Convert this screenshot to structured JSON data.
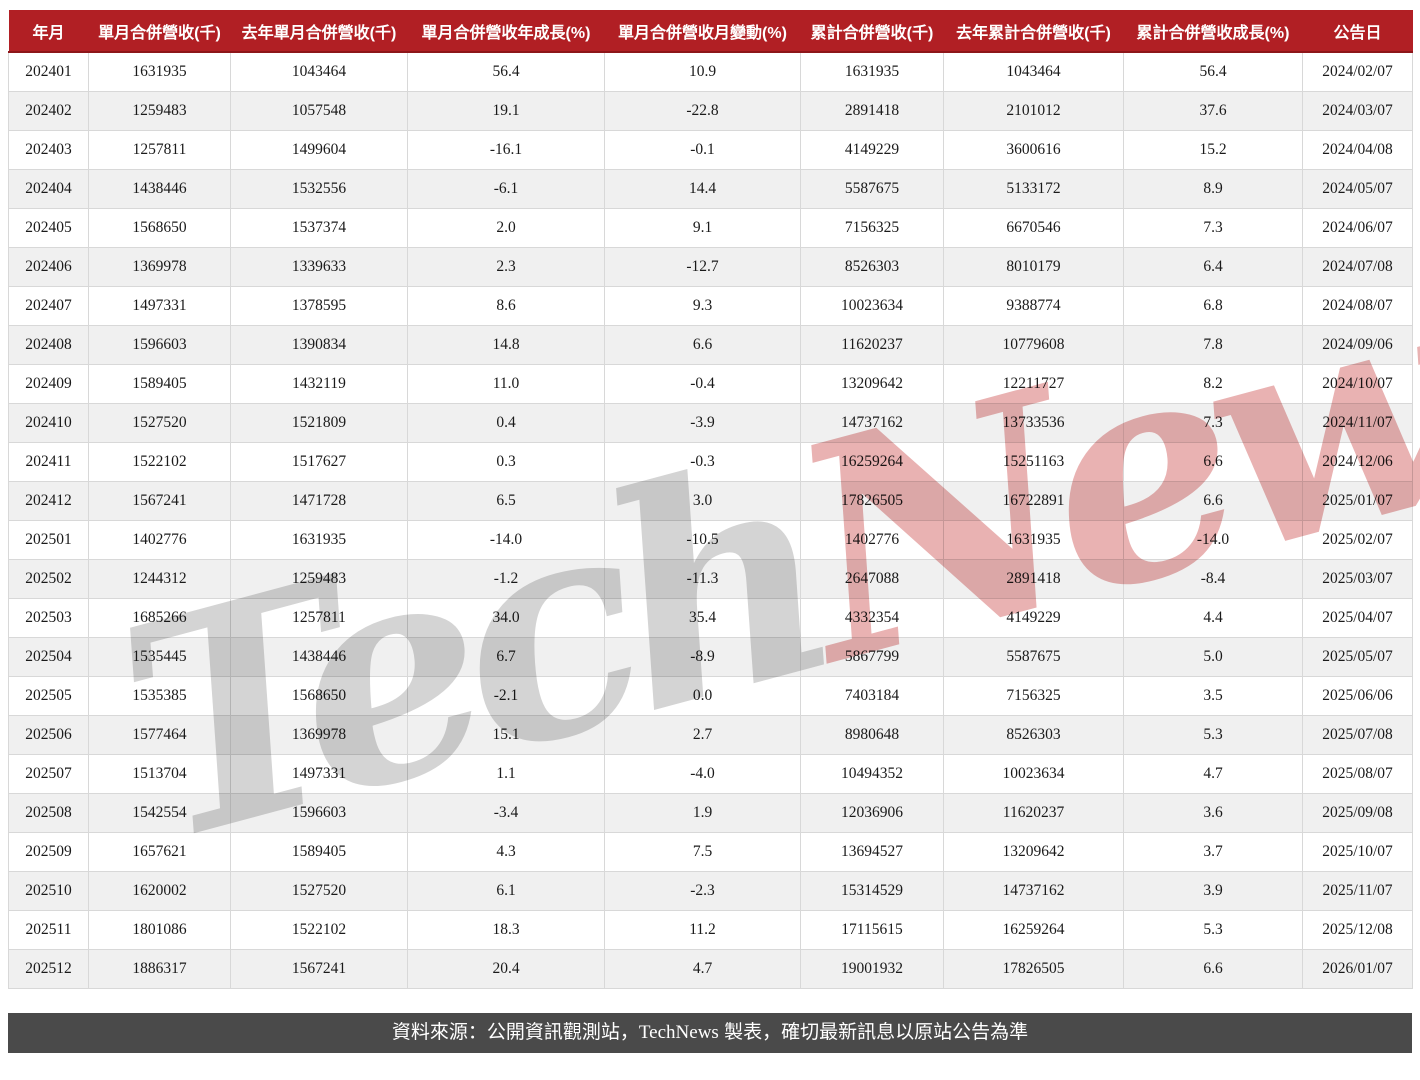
{
  "chart_data": {
    "type": "table",
    "columns": [
      "年月",
      "單月合併營收(千)",
      "去年單月合併營收(千)",
      "單月合併營收年成長(%)",
      "單月合併營收月變動(%)",
      "累計合併營收(千)",
      "去年累計合併營收(千)",
      "累計合併營收成長(%)",
      "公告日"
    ],
    "rows": [
      [
        "202401",
        "1631935",
        "1043464",
        "56.4",
        "10.9",
        "1631935",
        "1043464",
        "56.4",
        "2024/02/07"
      ],
      [
        "202402",
        "1259483",
        "1057548",
        "19.1",
        "-22.8",
        "2891418",
        "2101012",
        "37.6",
        "2024/03/07"
      ],
      [
        "202403",
        "1257811",
        "1499604",
        "-16.1",
        "-0.1",
        "4149229",
        "3600616",
        "15.2",
        "2024/04/08"
      ],
      [
        "202404",
        "1438446",
        "1532556",
        "-6.1",
        "14.4",
        "5587675",
        "5133172",
        "8.9",
        "2024/05/07"
      ],
      [
        "202405",
        "1568650",
        "1537374",
        "2.0",
        "9.1",
        "7156325",
        "6670546",
        "7.3",
        "2024/06/07"
      ],
      [
        "202406",
        "1369978",
        "1339633",
        "2.3",
        "-12.7",
        "8526303",
        "8010179",
        "6.4",
        "2024/07/08"
      ],
      [
        "202407",
        "1497331",
        "1378595",
        "8.6",
        "9.3",
        "10023634",
        "9388774",
        "6.8",
        "2024/08/07"
      ],
      [
        "202408",
        "1596603",
        "1390834",
        "14.8",
        "6.6",
        "11620237",
        "10779608",
        "7.8",
        "2024/09/06"
      ],
      [
        "202409",
        "1589405",
        "1432119",
        "11.0",
        "-0.4",
        "13209642",
        "12211727",
        "8.2",
        "2024/10/07"
      ],
      [
        "202410",
        "1527520",
        "1521809",
        "0.4",
        "-3.9",
        "14737162",
        "13733536",
        "7.3",
        "2024/11/07"
      ],
      [
        "202411",
        "1522102",
        "1517627",
        "0.3",
        "-0.3",
        "16259264",
        "15251163",
        "6.6",
        "2024/12/06"
      ],
      [
        "202412",
        "1567241",
        "1471728",
        "6.5",
        "3.0",
        "17826505",
        "16722891",
        "6.6",
        "2025/01/07"
      ],
      [
        "202501",
        "1402776",
        "1631935",
        "-14.0",
        "-10.5",
        "1402776",
        "1631935",
        "-14.0",
        "2025/02/07"
      ],
      [
        "202502",
        "1244312",
        "1259483",
        "-1.2",
        "-11.3",
        "2647088",
        "2891418",
        "-8.4",
        "2025/03/07"
      ],
      [
        "202503",
        "1685266",
        "1257811",
        "34.0",
        "35.4",
        "4332354",
        "4149229",
        "4.4",
        "2025/04/07"
      ],
      [
        "202504",
        "1535445",
        "1438446",
        "6.7",
        "-8.9",
        "5867799",
        "5587675",
        "5.0",
        "2025/05/07"
      ],
      [
        "202505",
        "1535385",
        "1568650",
        "-2.1",
        "0.0",
        "7403184",
        "7156325",
        "3.5",
        "2025/06/06"
      ],
      [
        "202506",
        "1577464",
        "1369978",
        "15.1",
        "2.7",
        "8980648",
        "8526303",
        "5.3",
        "2025/07/08"
      ],
      [
        "202507",
        "1513704",
        "1497331",
        "1.1",
        "-4.0",
        "10494352",
        "10023634",
        "4.7",
        "2025/08/07"
      ],
      [
        "202508",
        "1542554",
        "1596603",
        "-3.4",
        "1.9",
        "12036906",
        "11620237",
        "3.6",
        "2025/09/08"
      ],
      [
        "202509",
        "1657621",
        "1589405",
        "4.3",
        "7.5",
        "13694527",
        "13209642",
        "3.7",
        "2025/10/07"
      ],
      [
        "202510",
        "1620002",
        "1527520",
        "6.1",
        "-2.3",
        "15314529",
        "14737162",
        "3.9",
        "2025/11/07"
      ],
      [
        "202511",
        "1801086",
        "1522102",
        "18.3",
        "11.2",
        "17115615",
        "16259264",
        "5.3",
        "2025/12/08"
      ],
      [
        "202512",
        "1886317",
        "1567241",
        "20.4",
        "4.7",
        "19001932",
        "17826505",
        "6.6",
        "2026/01/07"
      ]
    ]
  },
  "watermark": {
    "gray_text": "Tech",
    "red_text": "News"
  },
  "footer": {
    "prefix": "資料來源：公開資訊觀測站，",
    "brand": "TechNews",
    "suffix": " 製表，確切最新訊息以原站公告為準"
  },
  "colors": {
    "header_bg": "#b11f24",
    "header_border": "#8d161a",
    "row_alt": "#f0f0f0",
    "cell_border": "#d8d8d8",
    "footer_bg": "#4a4a4a",
    "watermark_gray": "#d4d4d4",
    "watermark_red": "#e9b2b2",
    "text": "#1a1a1a",
    "header_text": "#ffffff"
  }
}
